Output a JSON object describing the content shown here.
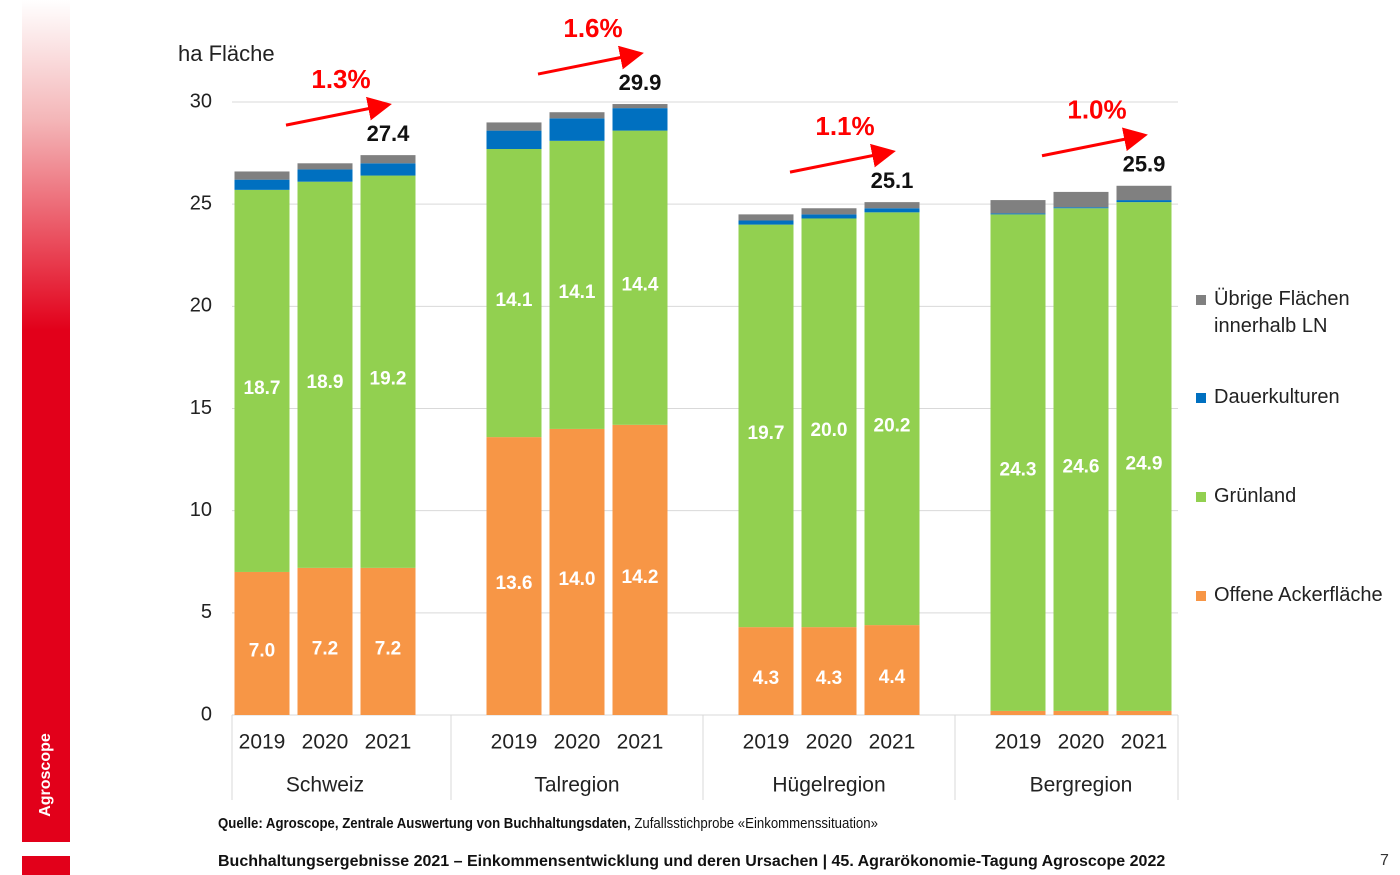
{
  "brand": "Agroscope",
  "source": {
    "bold": "Quelle: Agroscope, Zentrale Auswertung von Buchhaltungsdaten,",
    "text": "Zufallsstichprobe «Einkommenssituation»"
  },
  "footer": "Buchhaltungsergebnisse 2021 – Einkommensentwicklung und deren Ursachen | 45. Agrarökonomie-Tagung Agroscope 2022",
  "page_number": "7",
  "chart_data": {
    "type": "stacked_bar",
    "y_label": "ha Fläche",
    "categories": [
      "2019",
      "2020",
      "2021",
      "2019",
      "2020",
      "2021",
      "2019",
      "2020",
      "2021",
      "2019",
      "2020",
      "2021"
    ],
    "groups": [
      "Schweiz",
      "Talregion",
      "Hügelregion",
      "Bergregion"
    ],
    "series": [
      {
        "name": "Offene Ackerfläche",
        "color": "#f79646",
        "values": [
          7.0,
          7.2,
          7.2,
          13.6,
          14.0,
          14.2,
          4.3,
          4.3,
          4.4,
          0.2,
          0.2,
          0.2
        ],
        "value_labels": [
          "7.0",
          "7.2",
          "7.2",
          "13.6",
          "14.0",
          "14.2",
          "4.3",
          "4.3",
          "4.4",
          null,
          null,
          null
        ]
      },
      {
        "name": "Grünland",
        "color": "#92d050",
        "values": [
          18.7,
          18.9,
          19.2,
          14.1,
          14.1,
          14.4,
          19.7,
          20.0,
          20.2,
          24.3,
          24.6,
          24.9
        ],
        "value_labels": [
          "18.7",
          "18.9",
          "19.2",
          "14.1",
          "14.1",
          "14.4",
          "19.7",
          "20.0",
          "20.2",
          "24.3",
          "24.6",
          "24.9"
        ]
      },
      {
        "name": "Dauerkulturen",
        "color": "#0070c0",
        "values": [
          0.5,
          0.6,
          0.6,
          0.9,
          1.1,
          1.1,
          0.2,
          0.2,
          0.2,
          0.05,
          0.05,
          0.1
        ]
      },
      {
        "name": "Übrige Flächen innerhalb LN",
        "color": "#808080",
        "values": [
          0.4,
          0.3,
          0.4,
          0.4,
          0.3,
          0.2,
          0.3,
          0.3,
          0.3,
          0.65,
          0.75,
          0.7
        ]
      }
    ],
    "annotations": [
      {
        "total": 27.4,
        "growth": "1.3%"
      },
      {
        "total": 29.9,
        "growth": "1.6%"
      },
      {
        "total": 25.1,
        "growth": "1.1%"
      },
      {
        "total": 25.9,
        "growth": "1.0%"
      }
    ],
    "annotation_color": "#ff0000",
    "ylim": [
      0,
      30
    ],
    "yticks": [
      0,
      5,
      10,
      15,
      20,
      25,
      30
    ],
    "grid": true,
    "legend": "right"
  }
}
